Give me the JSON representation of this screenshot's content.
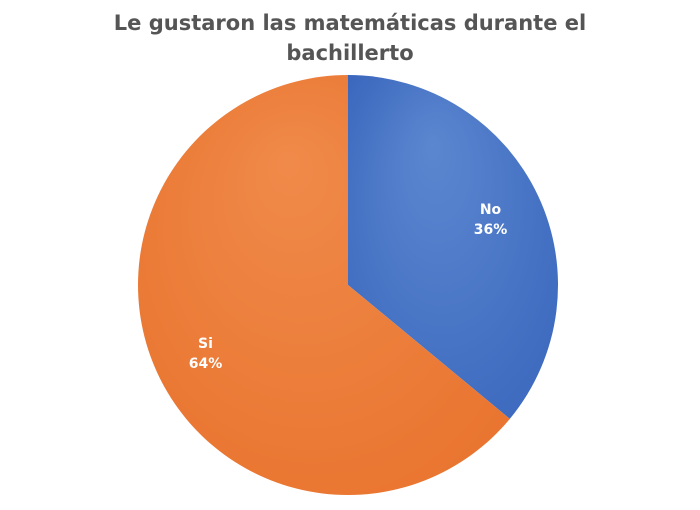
{
  "chart_data": {
    "type": "pie",
    "title": "Le gustaron las matemáticas durante el bachillerto",
    "slices": [
      {
        "label": "No",
        "value": 36,
        "display": "36%",
        "color": "#4472C4"
      },
      {
        "label": "Si",
        "value": 64,
        "display": "64%",
        "color": "#ED7D31"
      }
    ],
    "start": "12 o'clock",
    "direction": "clockwise",
    "legend": "none",
    "data_labels": "inside"
  }
}
